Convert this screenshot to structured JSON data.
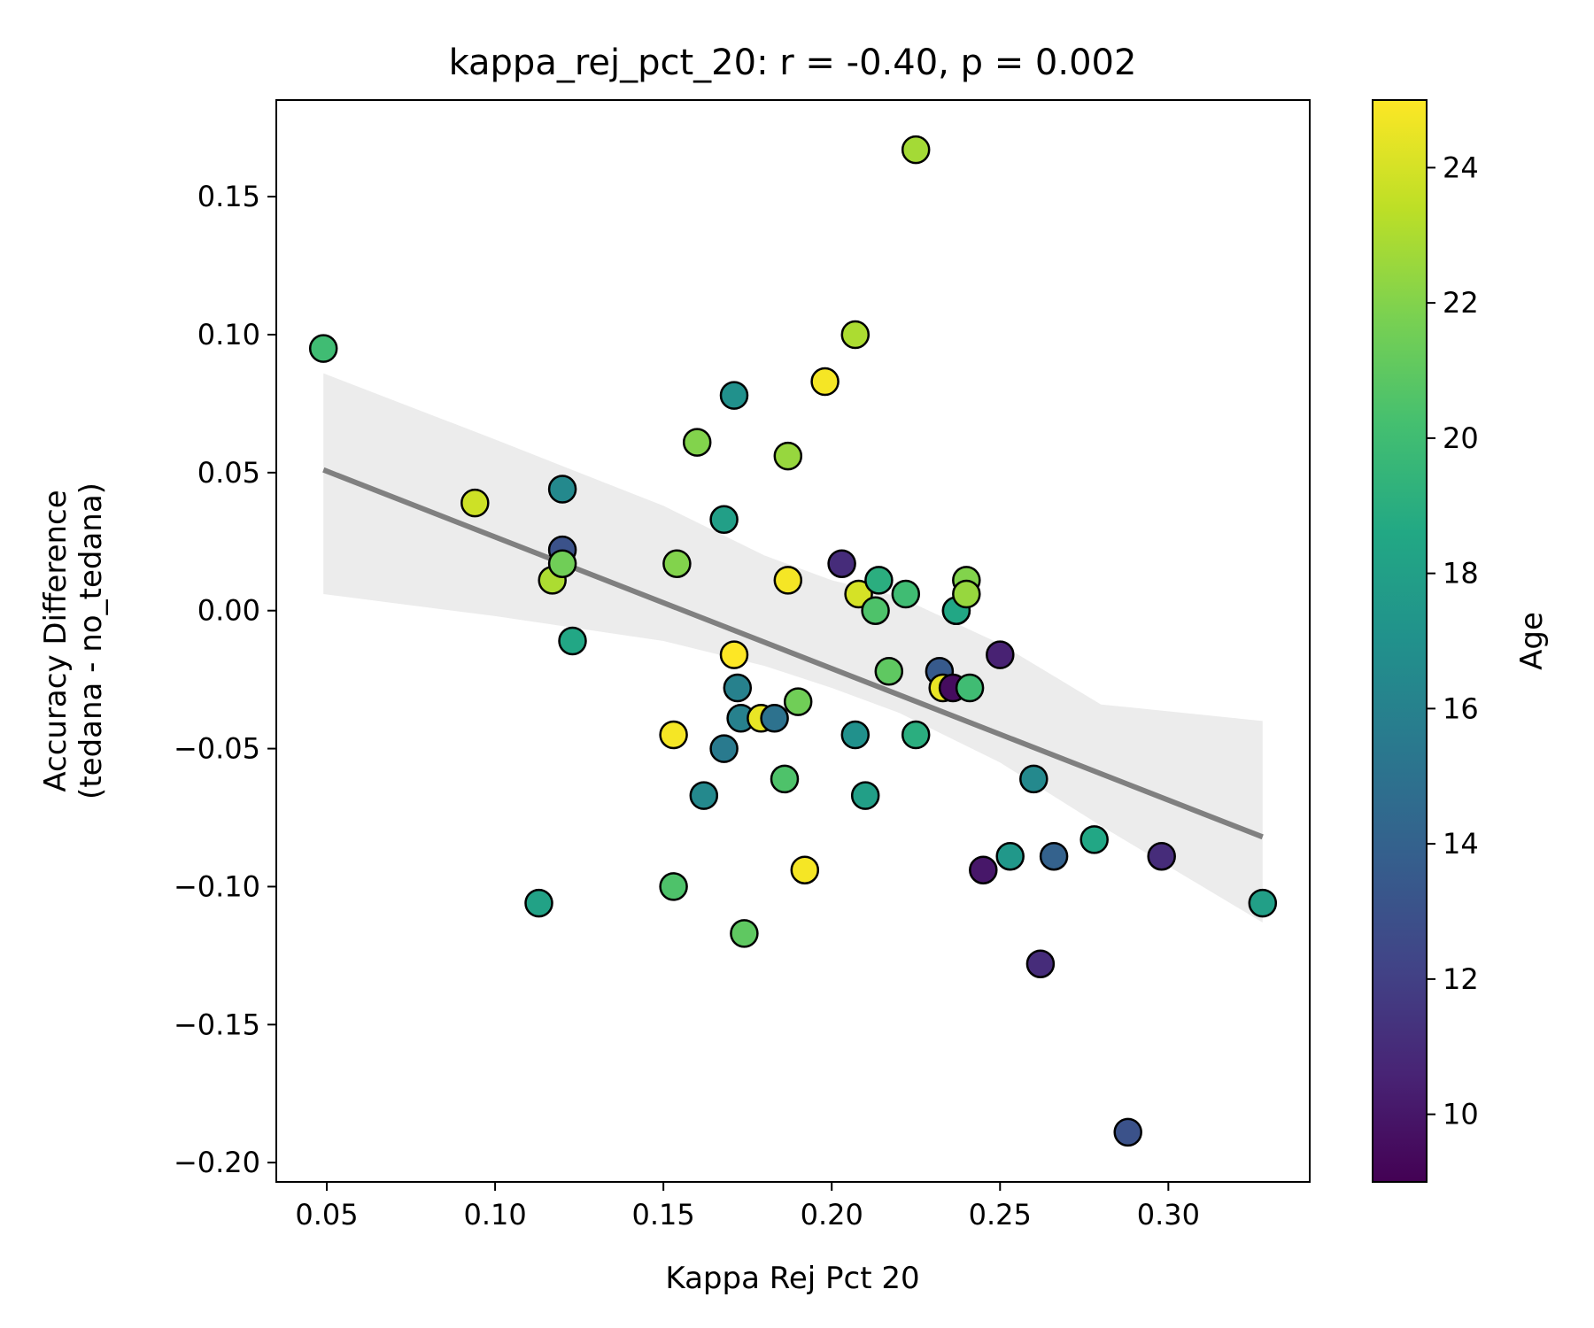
{
  "chart_data": {
    "type": "scatter",
    "title": "kappa_rej_pct_20: r = -0.40, p = 0.002",
    "xlabel": "Kappa Rej Pct 20",
    "ylabel_line1": "Accuracy Difference",
    "ylabel_line2": "(tedana - no_tedana)",
    "xlim": [
      0.035,
      0.342
    ],
    "ylim": [
      -0.207,
      0.185
    ],
    "x_ticks": [
      0.05,
      0.1,
      0.15,
      0.2,
      0.25,
      0.3
    ],
    "x_tick_labels": [
      "0.05",
      "0.10",
      "0.15",
      "0.20",
      "0.25",
      "0.30"
    ],
    "y_ticks": [
      0.15,
      0.1,
      0.05,
      0.0,
      -0.05,
      -0.1,
      -0.15,
      -0.2
    ],
    "y_tick_labels": [
      "0.15",
      "0.10",
      "0.05",
      "0.00",
      "−0.05",
      "−0.10",
      "−0.15",
      "−0.20"
    ],
    "colorbar": {
      "label": "Age",
      "colormap": "viridis",
      "range": [
        9,
        25
      ],
      "ticks": [
        10,
        12,
        14,
        16,
        18,
        20,
        22,
        24
      ],
      "tick_labels": [
        "10",
        "12",
        "14",
        "16",
        "18",
        "20",
        "22",
        "24"
      ]
    },
    "regression": {
      "x": [
        0.049,
        0.328
      ],
      "y": [
        0.051,
        -0.082
      ],
      "line_color": "#808080",
      "ci_color": "#ececec",
      "ci_band": [
        {
          "x": 0.049,
          "lower": 0.006,
          "upper": 0.086
        },
        {
          "x": 0.1,
          "lower": -0.002,
          "upper": 0.062
        },
        {
          "x": 0.15,
          "lower": -0.011,
          "upper": 0.038
        },
        {
          "x": 0.18,
          "lower": -0.02,
          "upper": 0.02
        },
        {
          "x": 0.2,
          "lower": -0.028,
          "upper": 0.011
        },
        {
          "x": 0.22,
          "lower": -0.037,
          "upper": 0.005
        },
        {
          "x": 0.25,
          "lower": -0.055,
          "upper": -0.012
        },
        {
          "x": 0.28,
          "lower": -0.078,
          "upper": -0.034
        },
        {
          "x": 0.328,
          "lower": -0.113,
          "upper": -0.04
        }
      ]
    },
    "points": [
      {
        "x": 0.049,
        "y": 0.095,
        "age": 20.0
      },
      {
        "x": 0.094,
        "y": 0.039,
        "age": 23.8
      },
      {
        "x": 0.113,
        "y": -0.106,
        "age": 18.2
      },
      {
        "x": 0.117,
        "y": 0.011,
        "age": 23.0
      },
      {
        "x": 0.12,
        "y": 0.044,
        "age": 16.5
      },
      {
        "x": 0.12,
        "y": 0.022,
        "age": 13.0
      },
      {
        "x": 0.12,
        "y": 0.017,
        "age": 21.5
      },
      {
        "x": 0.123,
        "y": -0.011,
        "age": 18.5
      },
      {
        "x": 0.153,
        "y": -0.045,
        "age": 24.8
      },
      {
        "x": 0.153,
        "y": -0.1,
        "age": 20.5
      },
      {
        "x": 0.154,
        "y": 0.017,
        "age": 22.0
      },
      {
        "x": 0.16,
        "y": 0.061,
        "age": 22.0
      },
      {
        "x": 0.162,
        "y": -0.067,
        "age": 16.5
      },
      {
        "x": 0.168,
        "y": 0.033,
        "age": 18.0
      },
      {
        "x": 0.168,
        "y": -0.05,
        "age": 15.5
      },
      {
        "x": 0.171,
        "y": 0.078,
        "age": 17.0
      },
      {
        "x": 0.171,
        "y": -0.016,
        "age": 25.0
      },
      {
        "x": 0.172,
        "y": -0.028,
        "age": 16.0
      },
      {
        "x": 0.173,
        "y": -0.039,
        "age": 16.0
      },
      {
        "x": 0.174,
        "y": -0.117,
        "age": 21.0
      },
      {
        "x": 0.179,
        "y": -0.039,
        "age": 24.5
      },
      {
        "x": 0.183,
        "y": -0.039,
        "age": 15.0
      },
      {
        "x": 0.186,
        "y": -0.061,
        "age": 20.5
      },
      {
        "x": 0.187,
        "y": 0.056,
        "age": 22.5
      },
      {
        "x": 0.187,
        "y": 0.011,
        "age": 24.8
      },
      {
        "x": 0.19,
        "y": -0.033,
        "age": 21.5
      },
      {
        "x": 0.192,
        "y": -0.094,
        "age": 24.8
      },
      {
        "x": 0.198,
        "y": 0.083,
        "age": 24.8
      },
      {
        "x": 0.203,
        "y": 0.017,
        "age": 11.0
      },
      {
        "x": 0.207,
        "y": 0.1,
        "age": 23.0
      },
      {
        "x": 0.207,
        "y": -0.045,
        "age": 17.0
      },
      {
        "x": 0.208,
        "y": 0.006,
        "age": 24.0
      },
      {
        "x": 0.21,
        "y": -0.067,
        "age": 18.0
      },
      {
        "x": 0.213,
        "y": 0.0,
        "age": 20.5
      },
      {
        "x": 0.214,
        "y": 0.011,
        "age": 19.0
      },
      {
        "x": 0.217,
        "y": -0.022,
        "age": 21.0
      },
      {
        "x": 0.222,
        "y": 0.006,
        "age": 20.0
      },
      {
        "x": 0.225,
        "y": -0.045,
        "age": 19.0
      },
      {
        "x": 0.225,
        "y": 0.167,
        "age": 22.8
      },
      {
        "x": 0.232,
        "y": -0.022,
        "age": 13.5
      },
      {
        "x": 0.233,
        "y": -0.028,
        "age": 24.5
      },
      {
        "x": 0.236,
        "y": -0.028,
        "age": 9.5
      },
      {
        "x": 0.237,
        "y": 0.0,
        "age": 11.5
      },
      {
        "x": 0.237,
        "y": 0.0,
        "age": 18.5
      },
      {
        "x": 0.24,
        "y": 0.011,
        "age": 22.0
      },
      {
        "x": 0.24,
        "y": 0.006,
        "age": 22.5
      },
      {
        "x": 0.241,
        "y": -0.028,
        "age": 20.0
      },
      {
        "x": 0.245,
        "y": -0.094,
        "age": 10.0
      },
      {
        "x": 0.25,
        "y": -0.016,
        "age": 10.5
      },
      {
        "x": 0.253,
        "y": -0.089,
        "age": 17.5
      },
      {
        "x": 0.26,
        "y": -0.061,
        "age": 16.5
      },
      {
        "x": 0.262,
        "y": -0.128,
        "age": 11.0
      },
      {
        "x": 0.266,
        "y": -0.089,
        "age": 14.0
      },
      {
        "x": 0.278,
        "y": -0.083,
        "age": 18.5
      },
      {
        "x": 0.288,
        "y": -0.189,
        "age": 13.0
      },
      {
        "x": 0.298,
        "y": -0.089,
        "age": 11.0
      },
      {
        "x": 0.328,
        "y": -0.106,
        "age": 18.0
      }
    ]
  }
}
